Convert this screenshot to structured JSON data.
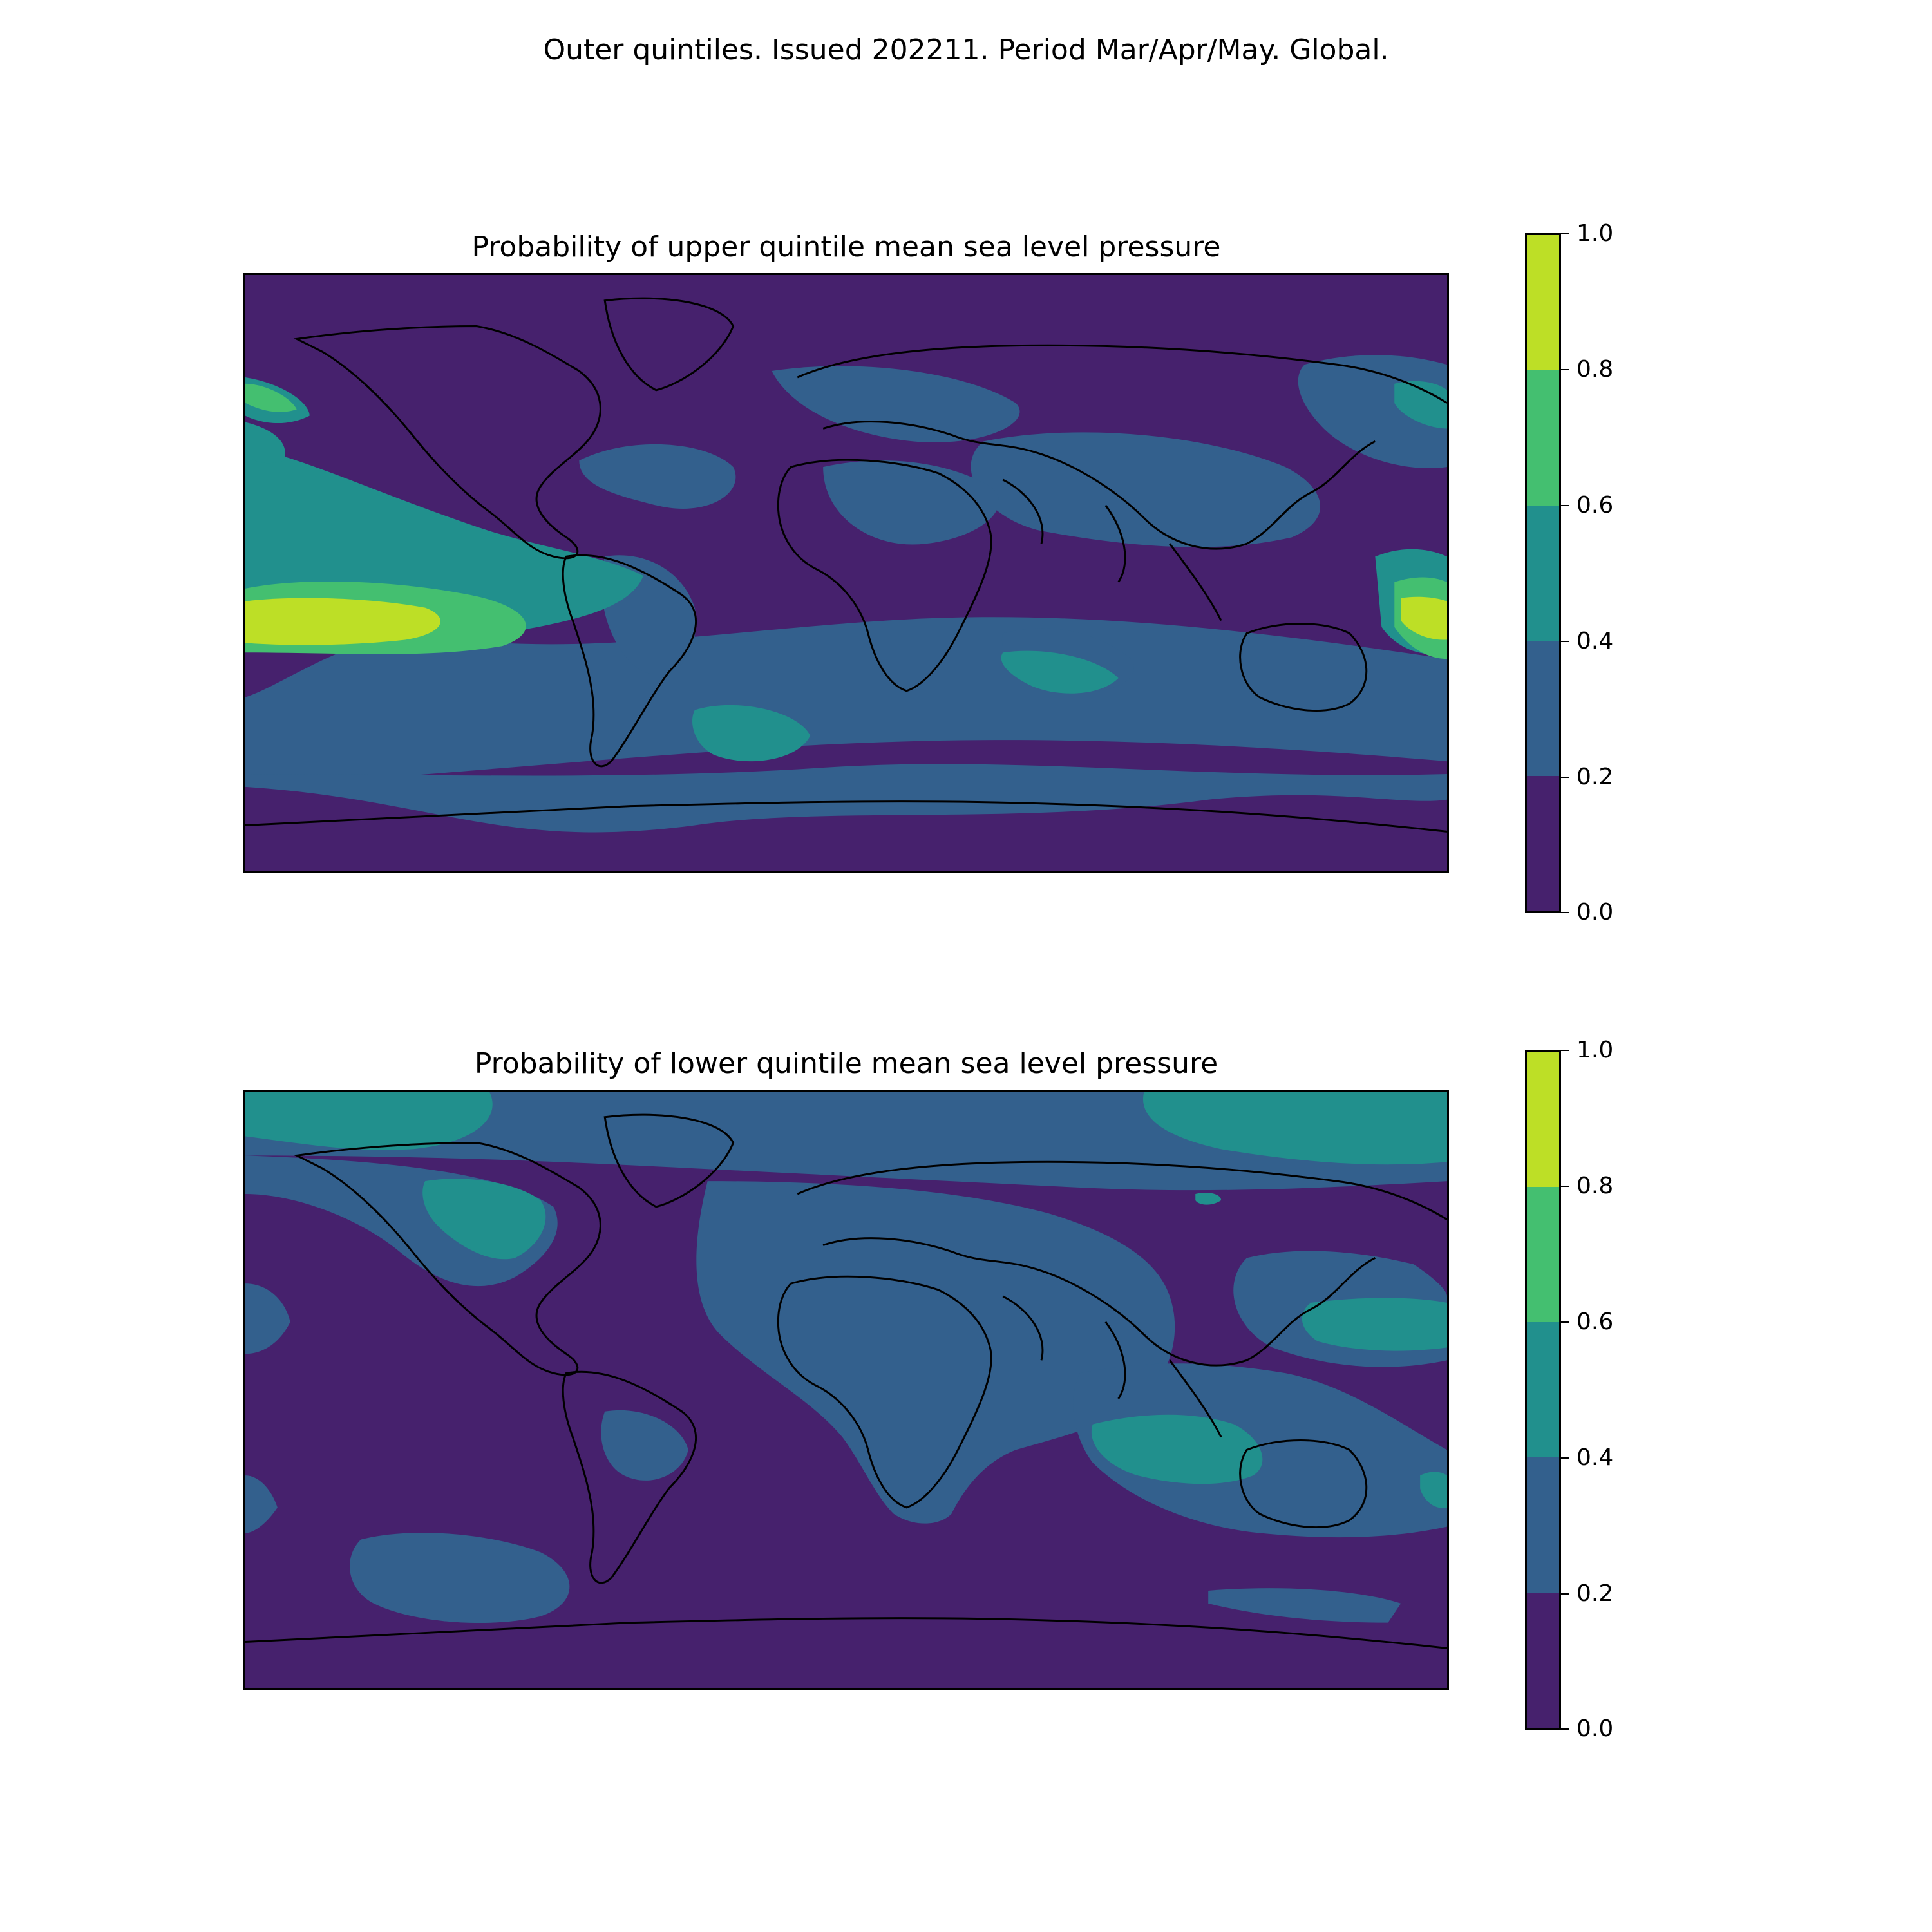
{
  "figure": {
    "suptitle": "Outer quintiles. Issued 202211. Period Mar/Apr/May. Global."
  },
  "colorbar": {
    "levels": [
      0.0,
      0.2,
      0.4,
      0.6,
      0.8,
      1.0
    ],
    "tick_labels": [
      "0.0",
      "0.2",
      "0.4",
      "0.6",
      "0.8",
      "1.0"
    ],
    "colors": [
      "#46216d",
      "#33608d",
      "#21908d",
      "#44bf70",
      "#bddf26"
    ]
  },
  "panels": [
    {
      "title": "Probability of upper quintile mean sea level pressure",
      "variable": "upper quintile mean sea level pressure probability"
    },
    {
      "title": "Probability of lower quintile mean sea level pressure",
      "variable": "lower quintile mean sea level pressure probability"
    }
  ],
  "chart_data": [
    {
      "type": "heatmap",
      "title": "Probability of upper quintile mean sea level pressure",
      "projection": "plate carree (global)",
      "xlim": [
        -180,
        180
      ],
      "ylim": [
        -90,
        90
      ],
      "colorbar_range": [
        0.0,
        1.0
      ],
      "colorbar_levels": [
        0.0,
        0.2,
        0.4,
        0.6,
        0.8,
        1.0
      ]
    },
    {
      "type": "heatmap",
      "title": "Probability of lower quintile mean sea level pressure",
      "projection": "plate carree (global)",
      "xlim": [
        -180,
        180
      ],
      "ylim": [
        -90,
        90
      ],
      "colorbar_range": [
        0.0,
        1.0
      ],
      "colorbar_levels": [
        0.0,
        0.2,
        0.4,
        0.6,
        0.8,
        1.0
      ]
    }
  ]
}
